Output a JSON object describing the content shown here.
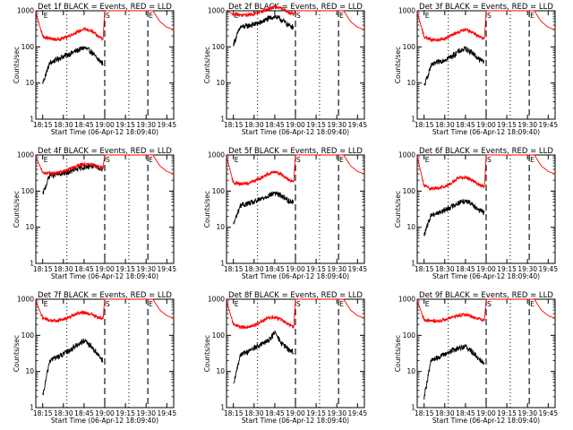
{
  "figure": {
    "background": "#ffffff",
    "line_colors": {
      "events": "#000000",
      "lld": "#ff0000"
    }
  },
  "chart_data": [
    {
      "type": "line",
      "title": "Det 1f BLACK = Events, RED = LLD",
      "xlabel": "Start Time (06-Apr-12 18:09:40)",
      "ylabel": "Counts/sec",
      "yscale": "log",
      "ylim": [
        1,
        1000
      ],
      "y_ticks": [
        "1",
        "10",
        "100",
        "1000"
      ],
      "x_ticks": [
        "18:15",
        "18:30",
        "18:45",
        "19:00",
        "19:15",
        "19:30",
        "19:45"
      ],
      "xlim_minutes": [
        0,
        40
      ],
      "markers": [
        {
          "label": "S",
          "minute": 20
        },
        {
          "label": "E",
          "minute": 32.5
        },
        {
          "label": "E",
          "minute": 2
        }
      ],
      "series": [
        {
          "name": "Events",
          "x": [
            2,
            4,
            6,
            8,
            10,
            12,
            14,
            16,
            18,
            19.5
          ],
          "y": [
            10,
            35,
            45,
            55,
            65,
            80,
            95,
            75,
            45,
            35
          ]
        },
        {
          "name": "LLD",
          "x": [
            0,
            2,
            4,
            6,
            8,
            10,
            12,
            14,
            16,
            18,
            19.5,
            20,
            22,
            30,
            34,
            35,
            36,
            38,
            40
          ],
          "y": [
            900,
            200,
            170,
            160,
            175,
            210,
            260,
            310,
            280,
            200,
            170,
            1000,
            1000,
            1000,
            1000,
            700,
            500,
            350,
            300
          ]
        }
      ]
    },
    {
      "type": "line",
      "title": "Det 2f BLACK = Events, RED = LLD",
      "xlabel": "Start Time (06-Apr-12 18:09:40)",
      "ylabel": "Counts/sec",
      "yscale": "log",
      "ylim": [
        1,
        1000
      ],
      "y_ticks": [
        "1",
        "10",
        "100",
        "1000"
      ],
      "x_ticks": [
        "18:15",
        "18:30",
        "18:45",
        "19:00",
        "19:15",
        "19:30",
        "19:45"
      ],
      "xlim_minutes": [
        0,
        40
      ],
      "markers": [
        {
          "label": "S",
          "minute": 20
        },
        {
          "label": "E",
          "minute": 32.5
        },
        {
          "label": "E",
          "minute": 2
        }
      ],
      "series": [
        {
          "name": "Events",
          "x": [
            2,
            4,
            6,
            8,
            10,
            12,
            14,
            16,
            18,
            19.5
          ],
          "y": [
            120,
            350,
            380,
            420,
            480,
            600,
            700,
            560,
            400,
            360
          ]
        },
        {
          "name": "LLD",
          "x": [
            0,
            2,
            4,
            6,
            8,
            10,
            12,
            14,
            16,
            18,
            19.5,
            20,
            22,
            30,
            34,
            35,
            36,
            38,
            40
          ],
          "y": [
            1000,
            800,
            750,
            770,
            820,
            950,
            1100,
            1300,
            1150,
            900,
            800,
            1000,
            1000,
            1000,
            1000,
            700,
            500,
            350,
            300
          ]
        }
      ]
    },
    {
      "type": "line",
      "title": "Det 3f BLACK = Events, RED = LLD",
      "xlabel": "Start Time (06-Apr-12 18:09:40)",
      "ylabel": "Counts/sec",
      "yscale": "log",
      "ylim": [
        1,
        1000
      ],
      "y_ticks": [
        "1",
        "10",
        "100",
        "1000"
      ],
      "x_ticks": [
        "18:15",
        "18:30",
        "18:45",
        "19:00",
        "19:15",
        "19:30",
        "19:45"
      ],
      "xlim_minutes": [
        0,
        40
      ],
      "markers": [
        {
          "label": "S",
          "minute": 20
        },
        {
          "label": "E",
          "minute": 32.5
        },
        {
          "label": "E",
          "minute": 2
        }
      ],
      "series": [
        {
          "name": "Events",
          "x": [
            2,
            4,
            6,
            8,
            10,
            12,
            14,
            16,
            18,
            19.5
          ],
          "y": [
            8,
            30,
            38,
            45,
            55,
            75,
            90,
            70,
            45,
            40
          ]
        },
        {
          "name": "LLD",
          "x": [
            0,
            2,
            4,
            6,
            8,
            10,
            12,
            14,
            16,
            18,
            19.5,
            20,
            22,
            30,
            34,
            35,
            36,
            38,
            40
          ],
          "y": [
            900,
            190,
            160,
            155,
            170,
            210,
            260,
            300,
            260,
            190,
            160,
            1000,
            1000,
            1000,
            1000,
            700,
            500,
            350,
            300
          ]
        }
      ]
    },
    {
      "type": "line",
      "title": "Det 4f BLACK = Events, RED = LLD",
      "xlabel": "Start Time (06-Apr-12 18:09:40)",
      "ylabel": "Counts/sec",
      "yscale": "log",
      "ylim": [
        1,
        1000
      ],
      "y_ticks": [
        "1",
        "10",
        "100",
        "1000"
      ],
      "x_ticks": [
        "18:15",
        "18:30",
        "18:45",
        "19:00",
        "19:15",
        "19:30",
        "19:45"
      ],
      "xlim_minutes": [
        0,
        40
      ],
      "markers": [
        {
          "label": "S",
          "minute": 20
        },
        {
          "label": "E",
          "minute": 32.5
        },
        {
          "label": "E",
          "minute": 2
        }
      ],
      "series": [
        {
          "name": "Events",
          "x": [
            2,
            4,
            6,
            8,
            10,
            12,
            14,
            16,
            18,
            19.5
          ],
          "y": [
            80,
            280,
            290,
            310,
            350,
            410,
            470,
            500,
            450,
            420
          ]
        },
        {
          "name": "LLD",
          "x": [
            0,
            2,
            4,
            6,
            8,
            10,
            12,
            14,
            16,
            18,
            19.5,
            20,
            22,
            30,
            34,
            35,
            36,
            38,
            40
          ],
          "y": [
            900,
            330,
            310,
            320,
            350,
            420,
            500,
            560,
            540,
            480,
            450,
            1000,
            1000,
            1000,
            1000,
            700,
            500,
            350,
            300
          ]
        }
      ]
    },
    {
      "type": "line",
      "title": "Det 5f BLACK = Events, RED = LLD",
      "xlabel": "Start Time (06-Apr-12 18:09:40)",
      "ylabel": "Counts/sec",
      "yscale": "log",
      "ylim": [
        1,
        1000
      ],
      "y_ticks": [
        "1",
        "10",
        "100",
        "1000"
      ],
      "x_ticks": [
        "18:15",
        "18:30",
        "18:45",
        "19:00",
        "19:15",
        "19:30",
        "19:45"
      ],
      "xlim_minutes": [
        0,
        40
      ],
      "markers": [
        {
          "label": "S",
          "minute": 20
        },
        {
          "label": "E",
          "minute": 32.5
        },
        {
          "label": "E",
          "minute": 2
        }
      ],
      "series": [
        {
          "name": "Events",
          "x": [
            2,
            4,
            6,
            8,
            10,
            12,
            14,
            16,
            18,
            19.5
          ],
          "y": [
            12,
            40,
            45,
            50,
            60,
            75,
            90,
            75,
            55,
            50
          ]
        },
        {
          "name": "LLD",
          "x": [
            0,
            2,
            4,
            6,
            8,
            10,
            12,
            14,
            16,
            18,
            19.5,
            20,
            22,
            30,
            34,
            35,
            36,
            38,
            40
          ],
          "y": [
            900,
            170,
            160,
            165,
            190,
            230,
            300,
            350,
            290,
            210,
            180,
            1000,
            1000,
            1000,
            1000,
            700,
            500,
            350,
            300
          ]
        }
      ]
    },
    {
      "type": "line",
      "title": "Det 6f BLACK = Events, RED = LLD",
      "xlabel": "Start Time (06-Apr-12 18:09:40)",
      "ylabel": "Counts/sec",
      "yscale": "log",
      "ylim": [
        1,
        1000
      ],
      "y_ticks": [
        "1",
        "10",
        "100",
        "1000"
      ],
      "x_ticks": [
        "18:15",
        "18:30",
        "18:45",
        "19:00",
        "19:15",
        "19:30",
        "19:45"
      ],
      "xlim_minutes": [
        0,
        40
      ],
      "markers": [
        {
          "label": "S",
          "minute": 20
        },
        {
          "label": "E",
          "minute": 32.5
        },
        {
          "label": "E",
          "minute": 2
        }
      ],
      "series": [
        {
          "name": "Events",
          "x": [
            2,
            4,
            6,
            8,
            10,
            12,
            14,
            16,
            18,
            19.5
          ],
          "y": [
            6,
            22,
            25,
            30,
            38,
            48,
            55,
            45,
            30,
            25
          ]
        },
        {
          "name": "LLD",
          "x": [
            0,
            2,
            4,
            6,
            8,
            10,
            12,
            14,
            16,
            18,
            19.5,
            20,
            22,
            30,
            34,
            35,
            36,
            38,
            40
          ],
          "y": [
            900,
            140,
            120,
            120,
            135,
            170,
            230,
            250,
            200,
            150,
            130,
            1000,
            1000,
            1000,
            1000,
            700,
            500,
            350,
            300
          ]
        }
      ]
    },
    {
      "type": "line",
      "title": "Det 7f BLACK = Events, RED = LLD",
      "xlabel": "Start Time (06-Apr-12 18:09:40)",
      "ylabel": "Counts/sec",
      "yscale": "log",
      "ylim": [
        1,
        1000
      ],
      "y_ticks": [
        "1",
        "10",
        "100",
        "1000"
      ],
      "x_ticks": [
        "18:15",
        "18:30",
        "18:45",
        "19:00",
        "19:15",
        "19:30",
        "19:45"
      ],
      "xlim_minutes": [
        0,
        40
      ],
      "markers": [
        {
          "label": "S",
          "minute": 20
        },
        {
          "label": "E",
          "minute": 32.5
        },
        {
          "label": "E",
          "minute": 2
        }
      ],
      "series": [
        {
          "name": "Events",
          "x": [
            2,
            4,
            6,
            8,
            10,
            12,
            14,
            16,
            18,
            19.5
          ],
          "y": [
            2,
            20,
            25,
            30,
            40,
            55,
            70,
            50,
            30,
            20
          ]
        },
        {
          "name": "LLD",
          "x": [
            0,
            2,
            4,
            6,
            8,
            10,
            12,
            14,
            16,
            18,
            19.5,
            20,
            22,
            30,
            34,
            35,
            36,
            38,
            40
          ],
          "y": [
            900,
            300,
            260,
            250,
            280,
            330,
            400,
            430,
            380,
            320,
            300,
            1000,
            1000,
            1000,
            1000,
            700,
            500,
            350,
            300
          ]
        }
      ]
    },
    {
      "type": "line",
      "title": "Det 8f BLACK = Events, RED = LLD",
      "xlabel": "Start Time (06-Apr-12 18:09:40)",
      "ylabel": "Counts/sec",
      "yscale": "log",
      "ylim": [
        1,
        1000
      ],
      "y_ticks": [
        "1",
        "10",
        "100",
        "1000"
      ],
      "x_ticks": [
        "18:15",
        "18:30",
        "18:45",
        "19:00",
        "19:15",
        "19:30",
        "19:45"
      ],
      "xlim_minutes": [
        0,
        40
      ],
      "markers": [
        {
          "label": "S",
          "minute": 20
        },
        {
          "label": "E",
          "minute": 32.5
        },
        {
          "label": "E",
          "minute": 2
        }
      ],
      "series": [
        {
          "name": "Events",
          "x": [
            2,
            4,
            6,
            8,
            10,
            12,
            14,
            16,
            18,
            19.5
          ],
          "y": [
            4,
            30,
            35,
            45,
            55,
            70,
            120,
            60,
            40,
            35
          ]
        },
        {
          "name": "LLD",
          "x": [
            0,
            2,
            4,
            6,
            8,
            10,
            12,
            14,
            16,
            18,
            19.5,
            20,
            22,
            30,
            34,
            35,
            36,
            38,
            40
          ],
          "y": [
            900,
            200,
            170,
            170,
            190,
            240,
            300,
            320,
            270,
            200,
            170,
            1000,
            1000,
            1000,
            1000,
            700,
            500,
            350,
            300
          ]
        }
      ]
    },
    {
      "type": "line",
      "title": "Det 9f BLACK = Events, RED = LLD",
      "xlabel": "Start Time (06-Apr-12 18:09:40)",
      "ylabel": "Counts/sec",
      "yscale": "log",
      "ylim": [
        1,
        1000
      ],
      "y_ticks": [
        "1",
        "10",
        "100",
        "1000"
      ],
      "x_ticks": [
        "18:15",
        "18:30",
        "18:45",
        "19:00",
        "19:15",
        "19:30",
        "19:45"
      ],
      "xlim_minutes": [
        0,
        40
      ],
      "markers": [
        {
          "label": "S",
          "minute": 20
        },
        {
          "label": "E",
          "minute": 32.5
        },
        {
          "label": "E",
          "minute": 2
        }
      ],
      "series": [
        {
          "name": "Events",
          "x": [
            2,
            4,
            6,
            8,
            10,
            12,
            14,
            16,
            18,
            19.5
          ],
          "y": [
            2,
            20,
            25,
            30,
            38,
            45,
            50,
            35,
            22,
            18
          ]
        },
        {
          "name": "LLD",
          "x": [
            0,
            2,
            4,
            6,
            8,
            10,
            12,
            14,
            16,
            18,
            19.5,
            20,
            22,
            30,
            34,
            35,
            36,
            38,
            40
          ],
          "y": [
            900,
            270,
            250,
            250,
            270,
            310,
            360,
            380,
            330,
            280,
            260,
            1000,
            1000,
            1000,
            1000,
            700,
            500,
            350,
            300
          ]
        }
      ]
    }
  ]
}
